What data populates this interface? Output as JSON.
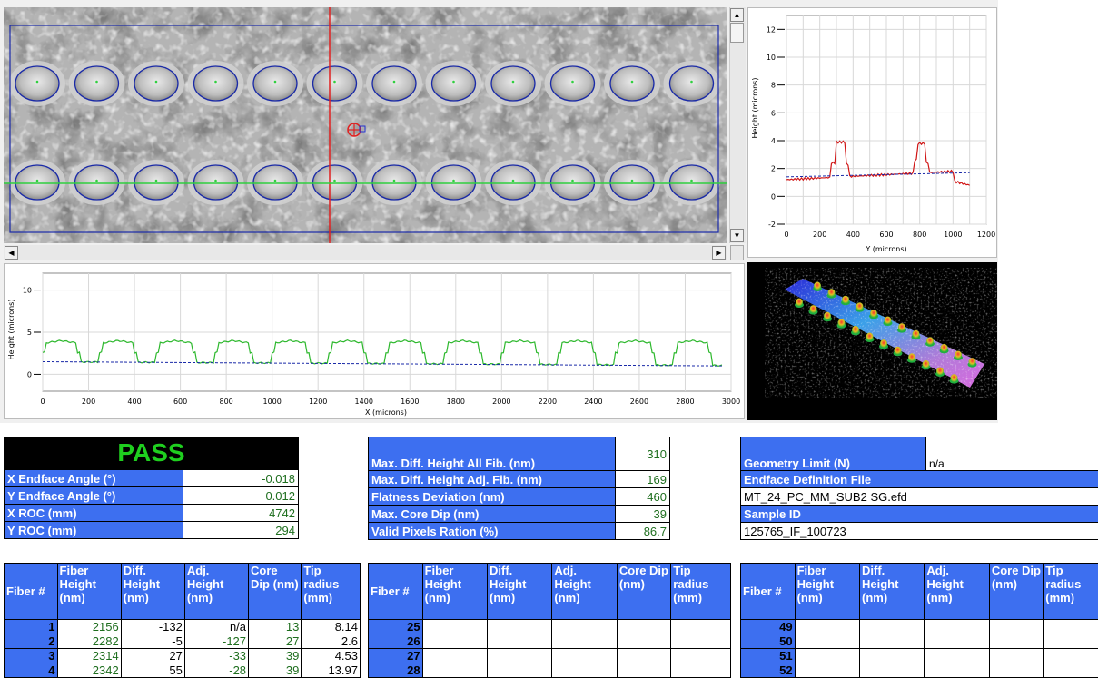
{
  "y_plot": {
    "ylabel": "Height (microns)",
    "xlabel": "Y (microns)",
    "y_ticks": [
      "12",
      "10",
      "8",
      "6",
      "4",
      "2",
      "0",
      "-2"
    ],
    "x_ticks": [
      "0",
      "200",
      "400",
      "600",
      "800",
      "1000",
      "1200"
    ]
  },
  "x_plot": {
    "ylabel": "Height (microns)",
    "xlabel": "X (microns)",
    "y_ticks": [
      "10",
      "5",
      "0"
    ],
    "x_ticks": [
      "0",
      "200",
      "400",
      "600",
      "800",
      "1000",
      "1200",
      "1400",
      "1600",
      "1800",
      "2000",
      "2200",
      "2400",
      "2600",
      "2800",
      "3000"
    ]
  },
  "result": {
    "status": "PASS",
    "rows": [
      {
        "label": "X Endface Angle (°)",
        "value": "-0.018"
      },
      {
        "label": "Y Endface Angle (°)",
        "value": "0.012"
      },
      {
        "label": "X ROC (mm)",
        "value": "4742"
      },
      {
        "label": "Y ROC (mm)",
        "value": "294"
      }
    ]
  },
  "metrics": {
    "rows": [
      {
        "label": "Max. Diff. Height All Fib. (nm)",
        "value": "310"
      },
      {
        "label": "Max. Diff. Height Adj. Fib. (nm)",
        "value": "169"
      },
      {
        "label": "Flatness Deviation (nm)",
        "value": "460"
      },
      {
        "label": "Max. Core Dip (nm)",
        "value": "39"
      },
      {
        "label": "Valid Pixels Ration (%)",
        "value": "86.7"
      }
    ]
  },
  "info": {
    "geometry_label": "Geometry Limit (N)",
    "geometry_value": "n/a",
    "endface_label": "Endface Definition File",
    "endface_value": "MT_24_PC_MM_SUB2 SG.efd",
    "sample_label": "Sample ID",
    "sample_value": "125765_IF_100723"
  },
  "fiber_headers": [
    "Fiber #",
    "Fiber Height (nm)",
    "Diff. Height (nm)",
    "Adj. Height (nm)",
    "Core Dip (nm)",
    "Tip radius (mm)"
  ],
  "fiber_table_1": [
    [
      "1",
      "2156",
      "-132",
      "n/a",
      "13",
      "8.14"
    ],
    [
      "2",
      "2282",
      "-5",
      "-127",
      "27",
      "2.6"
    ],
    [
      "3",
      "2314",
      "27",
      "-33",
      "39",
      "4.53"
    ],
    [
      "4",
      "2342",
      "55",
      "-28",
      "39",
      "13.97"
    ]
  ],
  "fiber_table_2": [
    [
      "25"
    ],
    [
      "26"
    ],
    [
      "27"
    ],
    [
      "28"
    ]
  ],
  "fiber_table_3": [
    [
      "49"
    ],
    [
      "50"
    ],
    [
      "51"
    ],
    [
      "52"
    ]
  ]
}
